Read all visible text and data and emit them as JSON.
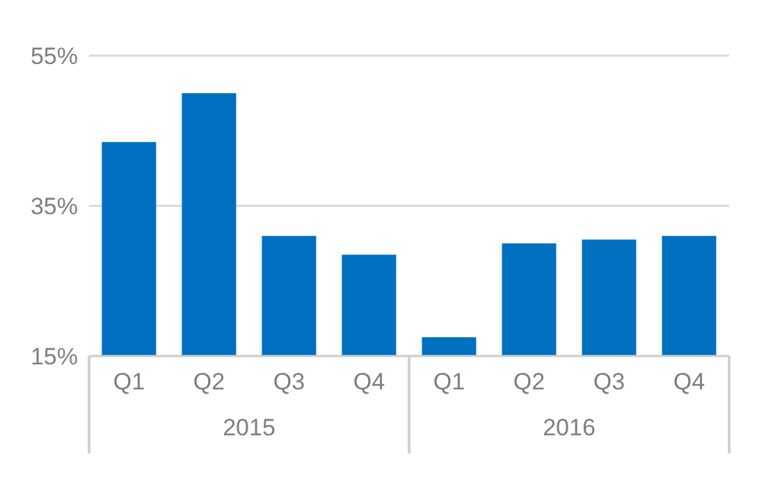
{
  "chart_data": {
    "type": "bar",
    "categories": [
      "Q1",
      "Q2",
      "Q3",
      "Q4",
      "Q1",
      "Q2",
      "Q3",
      "Q4"
    ],
    "series": [
      {
        "color": "#0070c0",
        "values": [
          43.5,
          50,
          31,
          28.5,
          17.5,
          30,
          30.5,
          31
        ]
      }
    ],
    "ylim": [
      15,
      55
    ],
    "yticks": [
      {
        "value": 15,
        "label": "15%"
      },
      {
        "value": 35,
        "label": "35%"
      },
      {
        "value": 55,
        "label": "55%"
      }
    ],
    "grid": "y",
    "legend": false,
    "annotations": [
      "2015",
      "2016"
    ]
  }
}
